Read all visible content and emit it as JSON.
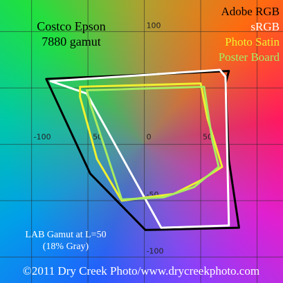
{
  "chart_data": {
    "type": "gamut",
    "title": [
      "Costco Epson",
      "7880 gamut"
    ],
    "note": [
      "LAB Gamut at L=50",
      "(18% Gray)"
    ],
    "credit": "©2011 Dry Creek Photo/www.drycreekphoto.com",
    "xlim": [
      -128,
      123
    ],
    "ylim": [
      -123,
      128
    ],
    "xticks": [
      -100,
      -50,
      0,
      50
    ],
    "yticks": [
      100,
      -50,
      -100
    ],
    "grid_values": [
      -100,
      -50,
      0,
      50,
      100
    ],
    "grid": true,
    "legend": "top-right",
    "series": [
      {
        "name": "Adobe RGB",
        "color": "#000000",
        "a": [
          -87,
          75,
          72,
          75,
          84,
          1,
          -48
        ],
        "b": [
          58,
          65,
          54,
          -14,
          -74,
          -76,
          -26
        ]
      },
      {
        "name": "sRGB",
        "color": "#ffffff",
        "a": [
          -83,
          67,
          72,
          75,
          15,
          -51
        ],
        "b": [
          56,
          66,
          60,
          -72,
          -74,
          45
        ]
      },
      {
        "name": "Photo Satin",
        "color": "#f0f030",
        "a": [
          -57,
          50,
          56,
          69,
          50,
          26,
          -20,
          -42,
          -57
        ],
        "b": [
          51,
          54,
          23,
          -20,
          -32,
          -44,
          -50,
          -13,
          42
        ]
      },
      {
        "name": "Poster Board",
        "color": "#a8ec60",
        "a": [
          -51,
          53,
          60,
          66,
          44,
          17,
          -20,
          -48
        ],
        "b": [
          48,
          51,
          5,
          -20,
          -38,
          -47,
          -49,
          36
        ]
      }
    ]
  }
}
